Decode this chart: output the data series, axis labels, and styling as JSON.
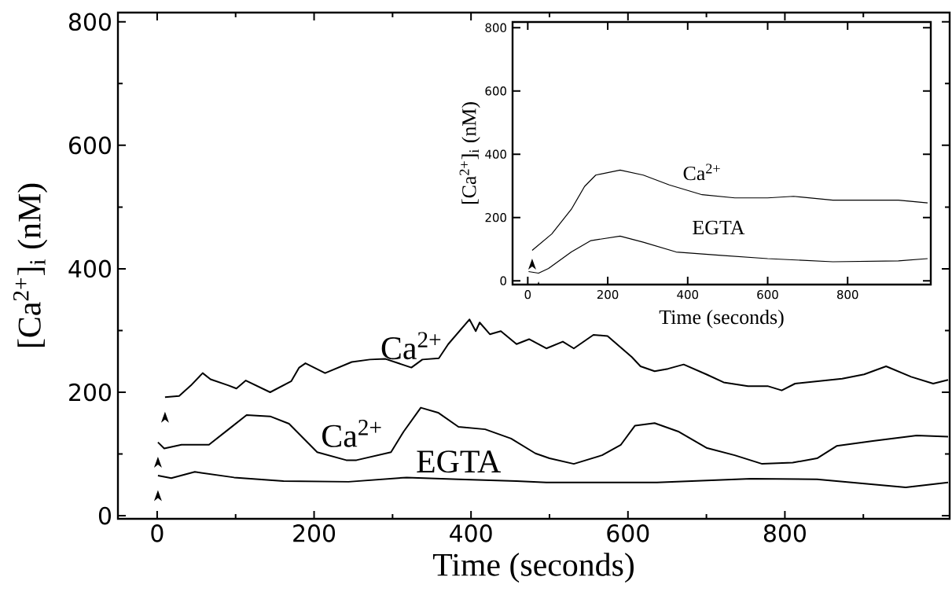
{
  "chart_data": [
    {
      "type": "line",
      "xlabel": "Time (seconds)",
      "ylabel": "[Ca$^{2+}$]$_{i}$ (nM)",
      "xlim": [
        -50,
        1010
      ],
      "ylim": [
        -5,
        815
      ],
      "xticks": [
        0,
        {
          "value": 100,
          "label": null
        },
        200,
        {
          "value": 300,
          "label": null
        },
        400,
        {
          "value": 500,
          "label": null
        },
        600,
        {
          "value": 700,
          "label": null
        },
        800,
        {
          "value": 900,
          "label": null
        }
      ],
      "yticks": [
        0,
        {
          "value": 100,
          "label": null
        },
        200,
        {
          "value": 300,
          "label": null
        },
        400,
        {
          "value": 500,
          "label": null
        },
        600,
        {
          "value": 700,
          "label": null
        },
        800
      ],
      "series": [
        {
          "name": "Ca$^{2+}$",
          "color": "#000000",
          "x": [
            10,
            28,
            43,
            58,
            68,
            91,
            101,
            113,
            144,
            171,
            181,
            189,
            214,
            248,
            271,
            291,
            324,
            338,
            359,
            371,
            398,
            406,
            411,
            424,
            438,
            458,
            474,
            496,
            517,
            531,
            556,
            574,
            605,
            616,
            634,
            651,
            671,
            700,
            722,
            753,
            778,
            796,
            813,
            873,
            901,
            929,
            961,
            989,
            1008
          ],
          "values": [
            192,
            194,
            211,
            231,
            221,
            211,
            206,
            219,
            200,
            218,
            240,
            247,
            231,
            249,
            253,
            254,
            240,
            253,
            255,
            278,
            318,
            299,
            313,
            294,
            299,
            278,
            286,
            271,
            282,
            271,
            293,
            291,
            257,
            242,
            234,
            238,
            245,
            229,
            216,
            210,
            210,
            203,
            214,
            222,
            229,
            242,
            225,
            214,
            220
          ]
        },
        {
          "name": "Ca$^{2+}$",
          "color": "#000000",
          "x": [
            1,
            9,
            31,
            66,
            91,
            114,
            144,
            168,
            204,
            241,
            254,
            298,
            314,
            336,
            358,
            384,
            418,
            451,
            482,
            500,
            531,
            567,
            591,
            609,
            634,
            665,
            700,
            736,
            771,
            810,
            841,
            866,
            912,
            968,
            1008
          ],
          "values": [
            119,
            109,
            115,
            115,
            140,
            163,
            161,
            149,
            103,
            90,
            90,
            103,
            136,
            175,
            167,
            144,
            140,
            125,
            101,
            93,
            84,
            98,
            115,
            146,
            150,
            136,
            110,
            98,
            84,
            86,
            93,
            113,
            121,
            130,
            128
          ]
        },
        {
          "name": "EGTA",
          "color": "#000000",
          "x": [
            1,
            18,
            48,
            98,
            161,
            244,
            318,
            384,
            458,
            496,
            637,
            757,
            841,
            954,
            1008
          ],
          "values": [
            65,
            61,
            71,
            62,
            56,
            55,
            62,
            59,
            56,
            54,
            54,
            60,
            59,
            46,
            54
          ]
        }
      ]
    },
    {
      "type": "line",
      "xlabel": "Time (seconds)",
      "ylabel": "[Ca$^{2+}$]$_{i}$ (nM)",
      "xlim": [
        -38,
        1008
      ],
      "ylim": [
        -12,
        818
      ],
      "xticks": [
        0,
        200,
        400,
        600,
        800
      ],
      "yticks": [
        0,
        200,
        400,
        600,
        800
      ],
      "series": [
        {
          "name": "Ca$^{2+}$",
          "color": "#000000",
          "x": [
            11,
            60,
            109,
            142,
            170,
            231,
            289,
            354,
            436,
            518,
            600,
            665,
            763,
            845,
            927,
            1000
          ],
          "values": [
            96,
            148,
            226,
            298,
            334,
            350,
            334,
            303,
            272,
            262,
            262,
            267,
            255,
            255,
            255,
            246
          ]
        },
        {
          "name": "EGTA",
          "color": "#000000",
          "x": [
            2,
            27,
            52,
            109,
            158,
            231,
            289,
            371,
            477,
            600,
            763,
            927,
            1000
          ],
          "values": [
            29,
            24,
            39,
            91,
            127,
            141,
            122,
            91,
            81,
            70,
            60,
            63,
            70
          ]
        }
      ]
    }
  ]
}
